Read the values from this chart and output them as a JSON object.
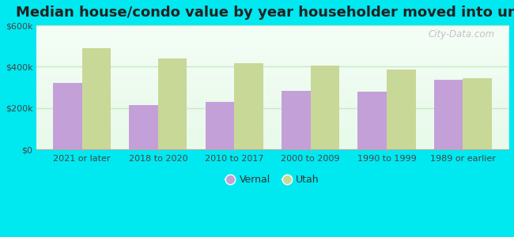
{
  "title": "Median house/condo value by year householder moved into unit",
  "categories": [
    "2021 or later",
    "2018 to 2020",
    "2010 to 2017",
    "2000 to 2009",
    "1990 to 1999",
    "1989 or earlier"
  ],
  "vernal_values": [
    320000,
    215000,
    230000,
    285000,
    280000,
    335000
  ],
  "utah_values": [
    490000,
    440000,
    415000,
    405000,
    385000,
    345000
  ],
  "vernal_color": "#c4a0d8",
  "utah_color": "#c8d896",
  "background_color": "#00e8f0",
  "plot_bg_color": "#e8faea",
  "ylim": [
    0,
    600000
  ],
  "yticks": [
    0,
    200000,
    400000,
    600000
  ],
  "ytick_labels": [
    "$0",
    "$200k",
    "$400k",
    "$600k"
  ],
  "bar_width": 0.38,
  "legend_labels": [
    "Vernal",
    "Utah"
  ],
  "watermark": "City-Data.com",
  "grid_color": "#c8e8c8",
  "title_fontsize": 13,
  "tick_fontsize": 8,
  "ytick_fontsize": 8
}
